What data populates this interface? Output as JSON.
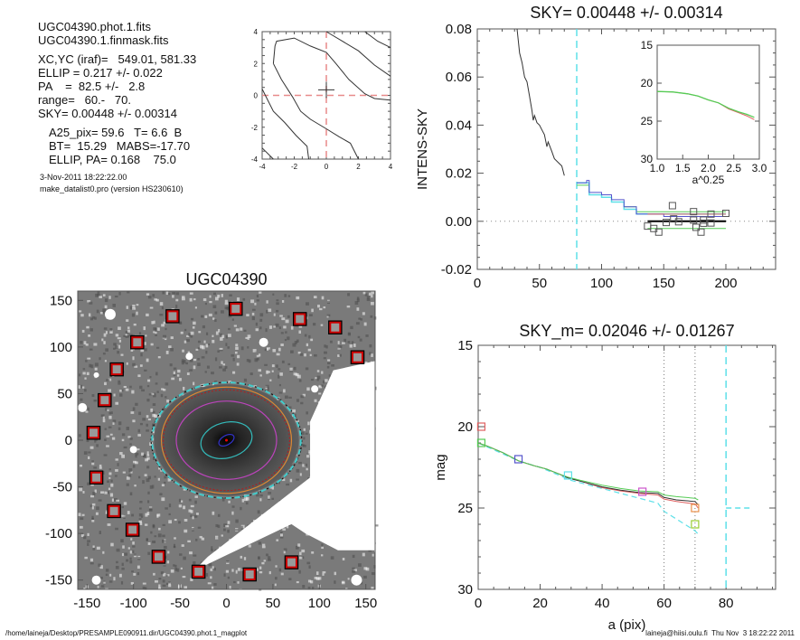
{
  "info": {
    "file1": "UGC04390.phot.1.fits",
    "file2": "UGC04390.1.finmask.fits",
    "center": "XC,YC (iraf)=   549.01, 581.33",
    "ellip": "ELLIP = 0.217 +/- 0.022",
    "pa": "PA    =  82.5 +/-   2.8",
    "range": "range=   60.-   70.",
    "sky": "SKY= 0.00448 +/- 0.00314",
    "a25": "A25_pix= 59.6   T= 6.6  B",
    "bt": "BT=  15.29   MABS=-17.70",
    "ellip_pa": "ELLIP, PA= 0.168    75.0",
    "date": "3-Nov-2011 18:22:22.00",
    "program": "make_datalist0.pro (version HS230610)"
  },
  "footer": {
    "path": "/home/laineja/Desktop/PRESAMPLE090911.dir/UGC04390.phot.1_magplot",
    "user_time": "laineja@hiisi.oulu.fi  Thu Nov  3 18:22:22 2011"
  },
  "colors": {
    "axis": "#555555",
    "curve": "#333333",
    "red_dash": "#e88a8a",
    "cyan": "#5ee0e8",
    "green": "#55cc55",
    "red": "#e06060",
    "blue": "#5555cc",
    "magenta": "#cc55cc",
    "orange": "#e8904a",
    "marker_red": "#cc0000"
  },
  "chart_data": [
    {
      "id": "center-contour",
      "type": "line",
      "title": "",
      "xlim": [
        -4,
        4
      ],
      "ylim": [
        -4,
        4
      ],
      "xticks": [
        "-4",
        "-2",
        "0",
        "2",
        "4"
      ],
      "yticks": [
        "-4",
        "-2",
        "0",
        "2",
        "4"
      ],
      "contours": [
        [
          [
            -4,
            0.4
          ],
          [
            -3.7,
            -0.2
          ],
          [
            -3.3,
            -1
          ],
          [
            -2.6,
            -1.7
          ],
          [
            -1.9,
            -2.5
          ],
          [
            -1.2,
            -3.2
          ],
          [
            -1.1,
            -4
          ]
        ],
        [
          [
            -4,
            -3.3
          ],
          [
            -3.3,
            -4
          ]
        ],
        [
          [
            -3.3,
            2
          ],
          [
            -3.2,
            3.1
          ],
          [
            -3.1,
            3.4
          ],
          [
            -2,
            3.6
          ],
          [
            -1,
            3.1
          ],
          [
            0,
            2.7
          ],
          [
            0.6,
            2
          ],
          [
            1.4,
            1
          ],
          [
            2.4,
            0.1
          ],
          [
            3,
            -0.2
          ],
          [
            4,
            -0.3
          ]
        ],
        [
          [
            -3.3,
            2
          ],
          [
            -2.8,
            1
          ],
          [
            -2.1,
            -0.1
          ],
          [
            -1.6,
            -1
          ],
          [
            -1,
            -1.5
          ],
          [
            0,
            -2.1
          ],
          [
            0.8,
            -2.6
          ],
          [
            1.5,
            -3
          ],
          [
            2,
            -4
          ]
        ],
        [
          [
            0,
            4
          ],
          [
            1,
            3.4
          ],
          [
            2,
            2.8
          ],
          [
            3,
            1.9
          ],
          [
            4,
            1.2
          ]
        ],
        [
          [
            2.4,
            4
          ],
          [
            3.2,
            3.4
          ],
          [
            4,
            3
          ]
        ]
      ],
      "center_marker": [
        0,
        0.35
      ],
      "crosshair": [
        0,
        0
      ]
    },
    {
      "id": "sky-profile",
      "type": "line",
      "title": "SKY= 0.00448 +/- 0.00314",
      "xlabel": "",
      "ylabel": "INTENS-SKY",
      "xlim": [
        0,
        240
      ],
      "ylim": [
        -0.02,
        0.08
      ],
      "xticks": [
        0,
        50,
        100,
        150,
        200
      ],
      "yticks": [
        "-0.02",
        "0.00",
        "0.02",
        "0.04",
        "0.06",
        "0.08"
      ],
      "ytick_values": [
        -0.02,
        0,
        0.02,
        0.04,
        0.06,
        0.08
      ],
      "vline_dashed_x": 80,
      "zero_dotted": true,
      "profile": [
        [
          32,
          0.08
        ],
        [
          34,
          0.07
        ],
        [
          36,
          0.066
        ],
        [
          38,
          0.06
        ],
        [
          40,
          0.058
        ],
        [
          42,
          0.052
        ],
        [
          44,
          0.046
        ],
        [
          45,
          0.042
        ],
        [
          46,
          0.044
        ],
        [
          48,
          0.041
        ],
        [
          50,
          0.04
        ],
        [
          52,
          0.038
        ],
        [
          54,
          0.036
        ],
        [
          56,
          0.031
        ],
        [
          57,
          0.033
        ],
        [
          60,
          0.029
        ],
        [
          62,
          0.026
        ],
        [
          66,
          0.024
        ],
        [
          68,
          0.023
        ],
        [
          70,
          0.019
        ]
      ],
      "steps_blue": [
        [
          80,
          0.016
        ],
        [
          88,
          0.016
        ],
        [
          88,
          0.017
        ],
        [
          90,
          0.017
        ],
        [
          90,
          0.012
        ],
        [
          100,
          0.012
        ],
        [
          100,
          0.011
        ],
        [
          108,
          0.011
        ],
        [
          108,
          0.009
        ],
        [
          118,
          0.009
        ],
        [
          118,
          0.006
        ],
        [
          128,
          0.006
        ],
        [
          128,
          0.003
        ],
        [
          140,
          0.003
        ],
        [
          140,
          0.003
        ],
        [
          150,
          0.003
        ],
        [
          150,
          0.002
        ],
        [
          200,
          0.002
        ]
      ],
      "steps_cyan": [
        [
          80,
          0.016
        ],
        [
          88,
          0.016
        ],
        [
          88,
          0.016
        ],
        [
          90,
          0.016
        ],
        [
          90,
          0.011
        ],
        [
          100,
          0.011
        ],
        [
          100,
          0.01
        ],
        [
          108,
          0.01
        ],
        [
          108,
          0.008
        ],
        [
          118,
          0.008
        ],
        [
          118,
          0.005
        ],
        [
          128,
          0.005
        ],
        [
          128,
          0.003
        ],
        [
          200,
          0.003
        ]
      ],
      "steps_green": [
        [
          80,
          0.015
        ],
        [
          88,
          0.015
        ],
        [
          90,
          0.015
        ],
        [
          90,
          0.011
        ],
        [
          100,
          0.011
        ],
        [
          100,
          0.01
        ],
        [
          108,
          0.01
        ],
        [
          108,
          0.008
        ],
        [
          118,
          0.008
        ],
        [
          118,
          0.006
        ],
        [
          128,
          0.006
        ],
        [
          128,
          0.004
        ],
        [
          200,
          0.004
        ]
      ],
      "sky_level_red": 0.003,
      "sky_level_green": -0.003,
      "sky_level_black": 0.0,
      "sky_range": [
        137,
        200
      ],
      "sky_points": [
        [
          137,
          -0.002
        ],
        [
          142,
          -0.003
        ],
        [
          146,
          -0.0045
        ],
        [
          152,
          -0.0005
        ],
        [
          157,
          0.0065
        ],
        [
          158,
          0.001
        ],
        [
          162,
          -0.0002
        ],
        [
          174,
          0.004
        ],
        [
          174,
          0.0005
        ],
        [
          176,
          -0.0025
        ],
        [
          180,
          -0.0045
        ],
        [
          182,
          0.0005
        ],
        [
          182,
          -0.0008
        ],
        [
          188,
          0.003
        ],
        [
          188,
          -0.0007
        ],
        [
          200,
          0.0033
        ]
      ],
      "inset": {
        "xlabel": "a^0.25",
        "xlim": [
          1.0,
          3.0
        ],
        "ylim": [
          30,
          15
        ],
        "xticks": [
          "1.0",
          "1.5",
          "2.0",
          "2.5",
          "3.0"
        ],
        "xtick_values": [
          1.0,
          1.5,
          2.0,
          2.5,
          3.0
        ],
        "yticks": [
          "15",
          "20",
          "25",
          "30"
        ],
        "ytick_values": [
          15,
          20,
          25,
          30
        ],
        "series_green": [
          [
            1.0,
            21.1
          ],
          [
            1.3,
            21.15
          ],
          [
            1.6,
            21.4
          ],
          [
            1.8,
            21.7
          ],
          [
            2.0,
            22.2
          ],
          [
            2.2,
            22.6
          ],
          [
            2.4,
            23.3
          ],
          [
            2.6,
            23.8
          ],
          [
            2.75,
            24.1
          ],
          [
            2.9,
            24.5
          ]
        ],
        "series_red": [
          [
            1.0,
            21.1
          ],
          [
            1.3,
            21.15
          ],
          [
            1.6,
            21.4
          ],
          [
            1.8,
            21.7
          ],
          [
            2.0,
            22.2
          ],
          [
            2.2,
            22.6
          ],
          [
            2.4,
            23.4
          ],
          [
            2.6,
            23.9
          ],
          [
            2.75,
            24.3
          ],
          [
            2.9,
            24.8
          ]
        ]
      }
    },
    {
      "id": "galaxy-image",
      "type": "scatter",
      "title": "UGC04390",
      "xlim": [
        -160,
        160
      ],
      "ylim": [
        -160,
        160
      ],
      "xticks": [
        -150,
        -100,
        -50,
        0,
        50,
        100,
        150
      ],
      "yticks": [
        -150,
        -100,
        -50,
        0,
        50,
        100,
        150
      ],
      "sky_boxes": [
        [
          -58,
          133
        ],
        [
          10,
          141
        ],
        [
          79,
          130
        ],
        [
          117,
          121
        ],
        [
          141,
          89
        ],
        [
          -96,
          105
        ],
        [
          -118,
          76
        ],
        [
          -131,
          43
        ],
        [
          -143,
          8
        ],
        [
          -140,
          -40
        ],
        [
          -121,
          -76
        ],
        [
          -101,
          -96
        ],
        [
          -73,
          -125
        ],
        [
          -30,
          -141
        ],
        [
          25,
          -144
        ],
        [
          70,
          -131
        ]
      ],
      "ellipses": [
        {
          "name": "inner-blue",
          "a": 9,
          "b": 5,
          "pa_deg": -30,
          "color": "#3333cc"
        },
        {
          "name": "cyan-inner",
          "a": 28,
          "b": 19,
          "pa_deg": -15,
          "color": "#33bbbb"
        },
        {
          "name": "magenta",
          "a": 54,
          "b": 42,
          "pa_deg": 0,
          "color": "#bb44bb"
        },
        {
          "name": "red-dashed",
          "a": 68,
          "b": 54,
          "pa_deg": 0,
          "color": "#aa2222"
        },
        {
          "name": "orange",
          "a": 70,
          "b": 57,
          "pa_deg": 0,
          "color": "#dd8833"
        },
        {
          "name": "black-dashed",
          "a": 81,
          "b": 62,
          "pa_deg": 0,
          "color": "#111111"
        },
        {
          "name": "cyan-dashed",
          "a": 80,
          "b": 62,
          "pa_deg": 0,
          "color": "#44cccc"
        }
      ]
    },
    {
      "id": "mag-profile",
      "type": "line",
      "title": "SKY_m=  0.02046 +/- 0.01267",
      "xlabel": "a (pix)",
      "ylabel": "mag",
      "xlim": [
        0,
        96
      ],
      "ylim": [
        30,
        15
      ],
      "xticks": [
        0,
        20,
        40,
        60,
        80
      ],
      "yticks": [
        15,
        20,
        25,
        30
      ],
      "vlines_dotted": [
        60,
        70
      ],
      "vline_dashed_x": 80,
      "sky_mag_marker": {
        "x": [
          80,
          88
        ],
        "y": 25
      },
      "series_green": [
        [
          0,
          21
        ],
        [
          3,
          21.2
        ],
        [
          8,
          21.6
        ],
        [
          13,
          22.1
        ],
        [
          18,
          22.4
        ],
        [
          22,
          22.6
        ],
        [
          26,
          22.9
        ],
        [
          29,
          23.1
        ],
        [
          33,
          23.3
        ],
        [
          40,
          23.6
        ],
        [
          46,
          23.8
        ],
        [
          52,
          23.95
        ],
        [
          58,
          24.0
        ],
        [
          60,
          24.2
        ],
        [
          64,
          24.3
        ],
        [
          70,
          24.4
        ],
        [
          71,
          24.5
        ]
      ],
      "series_black": [
        [
          0,
          21
        ],
        [
          3,
          21.2
        ],
        [
          8,
          21.6
        ],
        [
          13,
          22.1
        ],
        [
          18,
          22.4
        ],
        [
          22,
          22.6
        ],
        [
          26,
          22.9
        ],
        [
          29,
          23.15
        ],
        [
          33,
          23.35
        ],
        [
          40,
          23.7
        ],
        [
          46,
          23.9
        ],
        [
          52,
          24.05
        ],
        [
          58,
          24.1
        ],
        [
          60,
          24.35
        ],
        [
          64,
          24.5
        ],
        [
          70,
          24.6
        ],
        [
          71,
          24.8
        ]
      ],
      "series_red": [
        [
          0,
          21
        ],
        [
          3,
          21.2
        ],
        [
          8,
          21.6
        ],
        [
          13,
          22.1
        ],
        [
          18,
          22.4
        ],
        [
          22,
          22.6
        ],
        [
          26,
          22.9
        ],
        [
          29,
          23.15
        ],
        [
          33,
          23.35
        ],
        [
          40,
          23.75
        ],
        [
          46,
          23.95
        ],
        [
          52,
          24.1
        ],
        [
          58,
          24.2
        ],
        [
          60,
          24.45
        ],
        [
          64,
          24.6
        ],
        [
          70,
          24.75
        ],
        [
          71,
          25
        ]
      ],
      "series_cyan_dashed": [
        [
          0,
          21
        ],
        [
          13,
          22.1
        ],
        [
          20,
          22.5
        ],
        [
          30,
          23.3
        ],
        [
          40,
          23.8
        ],
        [
          50,
          24.3
        ],
        [
          58,
          24.7
        ],
        [
          60,
          25.2
        ],
        [
          65,
          25.8
        ],
        [
          70,
          26.4
        ],
        [
          71,
          26.6
        ]
      ],
      "markers": [
        {
          "x": 1,
          "y": 20.0,
          "color": "#e06060"
        },
        {
          "x": 1,
          "y": 21.0,
          "color": "#55cc55"
        },
        {
          "x": 13,
          "y": 22.0,
          "color": "#5555cc"
        },
        {
          "x": 29,
          "y": 23.0,
          "color": "#5ee0e8"
        },
        {
          "x": 53,
          "y": 24.0,
          "color": "#cc55cc"
        },
        {
          "x": 70,
          "y": 25.0,
          "color": "#e8904a"
        },
        {
          "x": 70,
          "y": 26.0,
          "color": "#99cc33"
        }
      ]
    }
  ]
}
